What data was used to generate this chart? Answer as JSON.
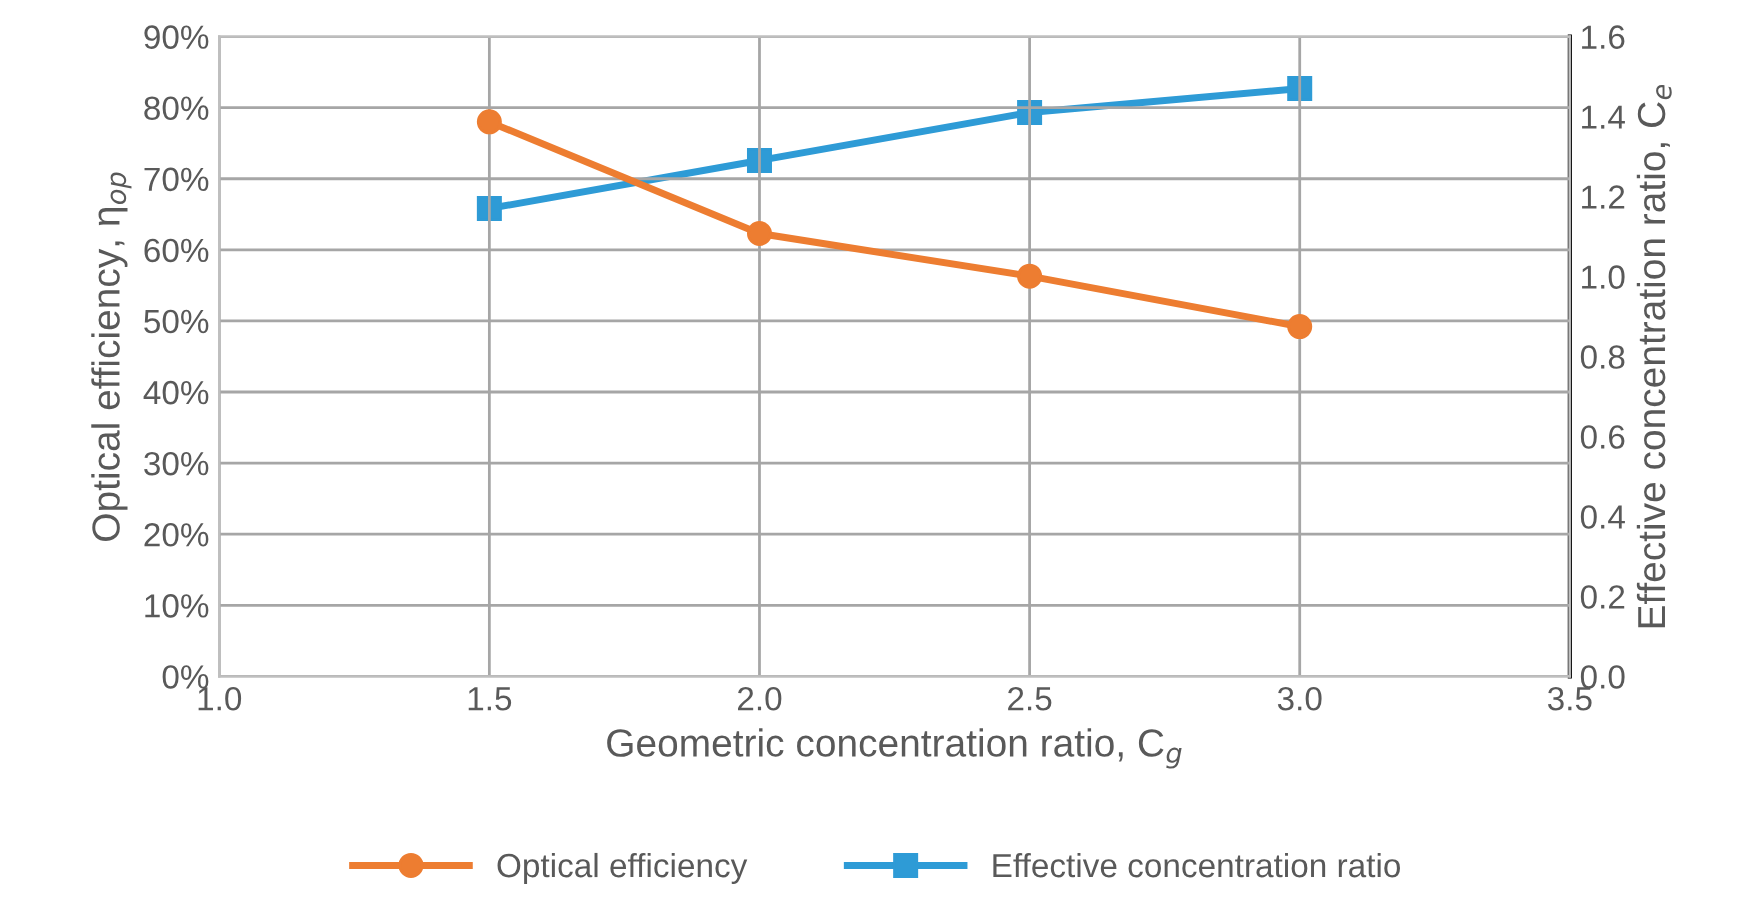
{
  "chart_data": {
    "type": "line",
    "xlabel": "Geometric concentration ratio, C$_{g}$",
    "ylabel": "Optical efficiency, η$_{op}$",
    "y2label": "Effective concentration ratio, C$_{e}$",
    "x": [
      1.5,
      2.0,
      2.5,
      3.0
    ],
    "series": [
      {
        "name": "Optical efficiency",
        "color": "#ed7d31",
        "marker": "circle",
        "values": [
          78,
          62.3,
          56.3,
          49.2
        ]
      },
      {
        "name": "Effective concentration ratio",
        "color": "#2e9bd6",
        "marker": "square",
        "axis": "y2",
        "values": [
          1.17,
          1.29,
          1.41,
          1.47
        ]
      }
    ],
    "xlim": [
      1.0,
      3.5
    ],
    "xticks": [
      {
        "value": 1.0,
        "label": "1.0"
      },
      {
        "value": 1.5,
        "label": "1.5"
      },
      {
        "value": 2.0,
        "label": "2.0"
      },
      {
        "value": 2.5,
        "label": "2.5"
      },
      {
        "value": 3.0,
        "label": "3.0"
      },
      {
        "value": 3.5,
        "label": "3.5"
      }
    ],
    "ylim": [
      0,
      90
    ],
    "yticks": [
      {
        "value": 0,
        "label": "0%"
      },
      {
        "value": 10,
        "label": "10%"
      },
      {
        "value": 20,
        "label": "20%"
      },
      {
        "value": 30,
        "label": "30%"
      },
      {
        "value": 40,
        "label": "40%"
      },
      {
        "value": 50,
        "label": "50%"
      },
      {
        "value": 60,
        "label": "60%"
      },
      {
        "value": 70,
        "label": "70%"
      },
      {
        "value": 80,
        "label": "80%"
      },
      {
        "value": 90,
        "label": "90%"
      }
    ],
    "y2lim": [
      0,
      1.6
    ],
    "y2ticks": [
      {
        "value": 0,
        "label": "0.0"
      },
      {
        "value": 0.2,
        "label": "0.2"
      },
      {
        "value": 0.4,
        "label": "0.4"
      },
      {
        "value": 0.6,
        "label": "0.6"
      },
      {
        "value": 0.8,
        "label": "0.8"
      },
      {
        "value": 1.0,
        "label": "1.0"
      },
      {
        "value": 1.2,
        "label": "1.2"
      },
      {
        "value": 1.4,
        "label": "1.4"
      },
      {
        "value": 1.6,
        "label": "1.6"
      }
    ],
    "grid": true,
    "legend": "bottom",
    "line_style": "solid"
  }
}
